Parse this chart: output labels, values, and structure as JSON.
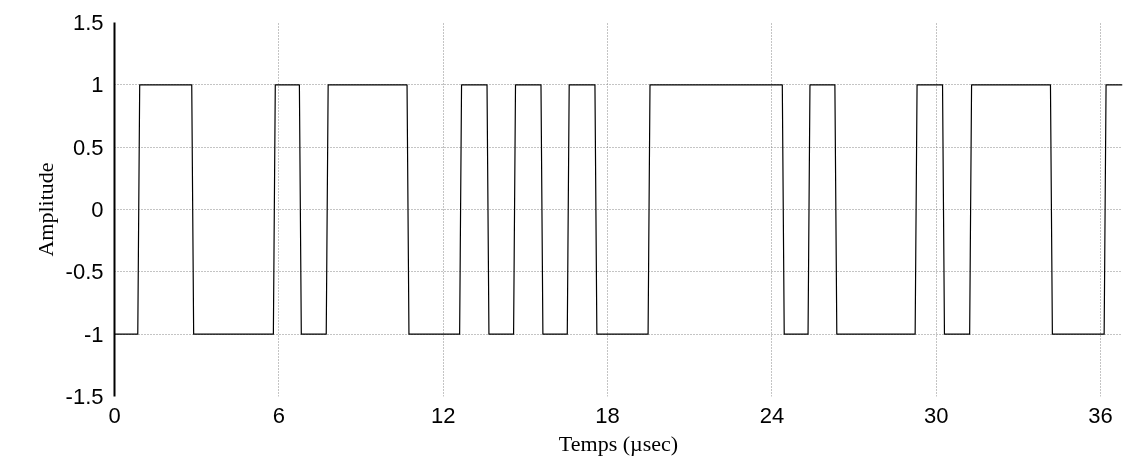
{
  "chart_data": {
    "type": "line",
    "xlabel": "Temps (µsec)",
    "ylabel": "Amplitude",
    "x": [
      0,
      0.85,
      0.92,
      2.82,
      2.89,
      5.8,
      5.87,
      6.75,
      6.82,
      7.73,
      7.8,
      10.68,
      10.75,
      12.6,
      12.67,
      13.6,
      13.67,
      14.57,
      14.64,
      15.57,
      15.64,
      16.53,
      16.6,
      17.54,
      17.61,
      19.48,
      19.55,
      24.38,
      24.45,
      25.32,
      25.39,
      26.3,
      26.37,
      29.23,
      29.3,
      30.23,
      30.3,
      31.22,
      31.29,
      34.17,
      34.24,
      36.13,
      36.2,
      36.8
    ],
    "series": [
      {
        "color": "#000000",
        "values": [
          -1,
          -1,
          1,
          1,
          -1,
          -1,
          1,
          1,
          -1,
          -1,
          1,
          1,
          -1,
          -1,
          1,
          1,
          -1,
          -1,
          1,
          1,
          -1,
          -1,
          1,
          1,
          -1,
          -1,
          1,
          1,
          -1,
          -1,
          1,
          1,
          -1,
          -1,
          1,
          1,
          -1,
          -1,
          1,
          1,
          -1,
          -1,
          1,
          1
        ]
      }
    ],
    "xlim": [
      0,
      36.8
    ],
    "ylim": [
      -1.5,
      1.5
    ],
    "xticks": [
      0,
      6,
      12,
      18,
      24,
      30,
      36
    ],
    "yticks": [
      -1.5,
      -1,
      -0.5,
      0,
      0.5,
      1,
      1.5
    ],
    "grid": true,
    "line_style": "solid"
  }
}
